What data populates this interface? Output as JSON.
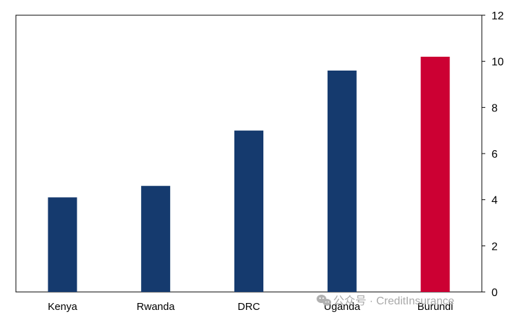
{
  "chart_data": {
    "type": "bar",
    "categories": [
      "Kenya",
      "Rwanda",
      "DRC",
      "Uganda",
      "Burundi"
    ],
    "values": [
      4.1,
      4.6,
      7.0,
      9.6,
      10.2
    ],
    "bar_colors": [
      "#153a6e",
      "#153a6e",
      "#153a6e",
      "#153a6e",
      "#cc0033"
    ],
    "ylim": [
      0,
      12
    ],
    "y_ticks": [
      0,
      2,
      4,
      6,
      8,
      10,
      12
    ],
    "y_axis_side": "right",
    "grid": false,
    "title": "",
    "xlabel": "",
    "ylabel": ""
  },
  "watermark": {
    "text": "公众号 · CreditInsurance",
    "icon": "wechat-icon"
  }
}
